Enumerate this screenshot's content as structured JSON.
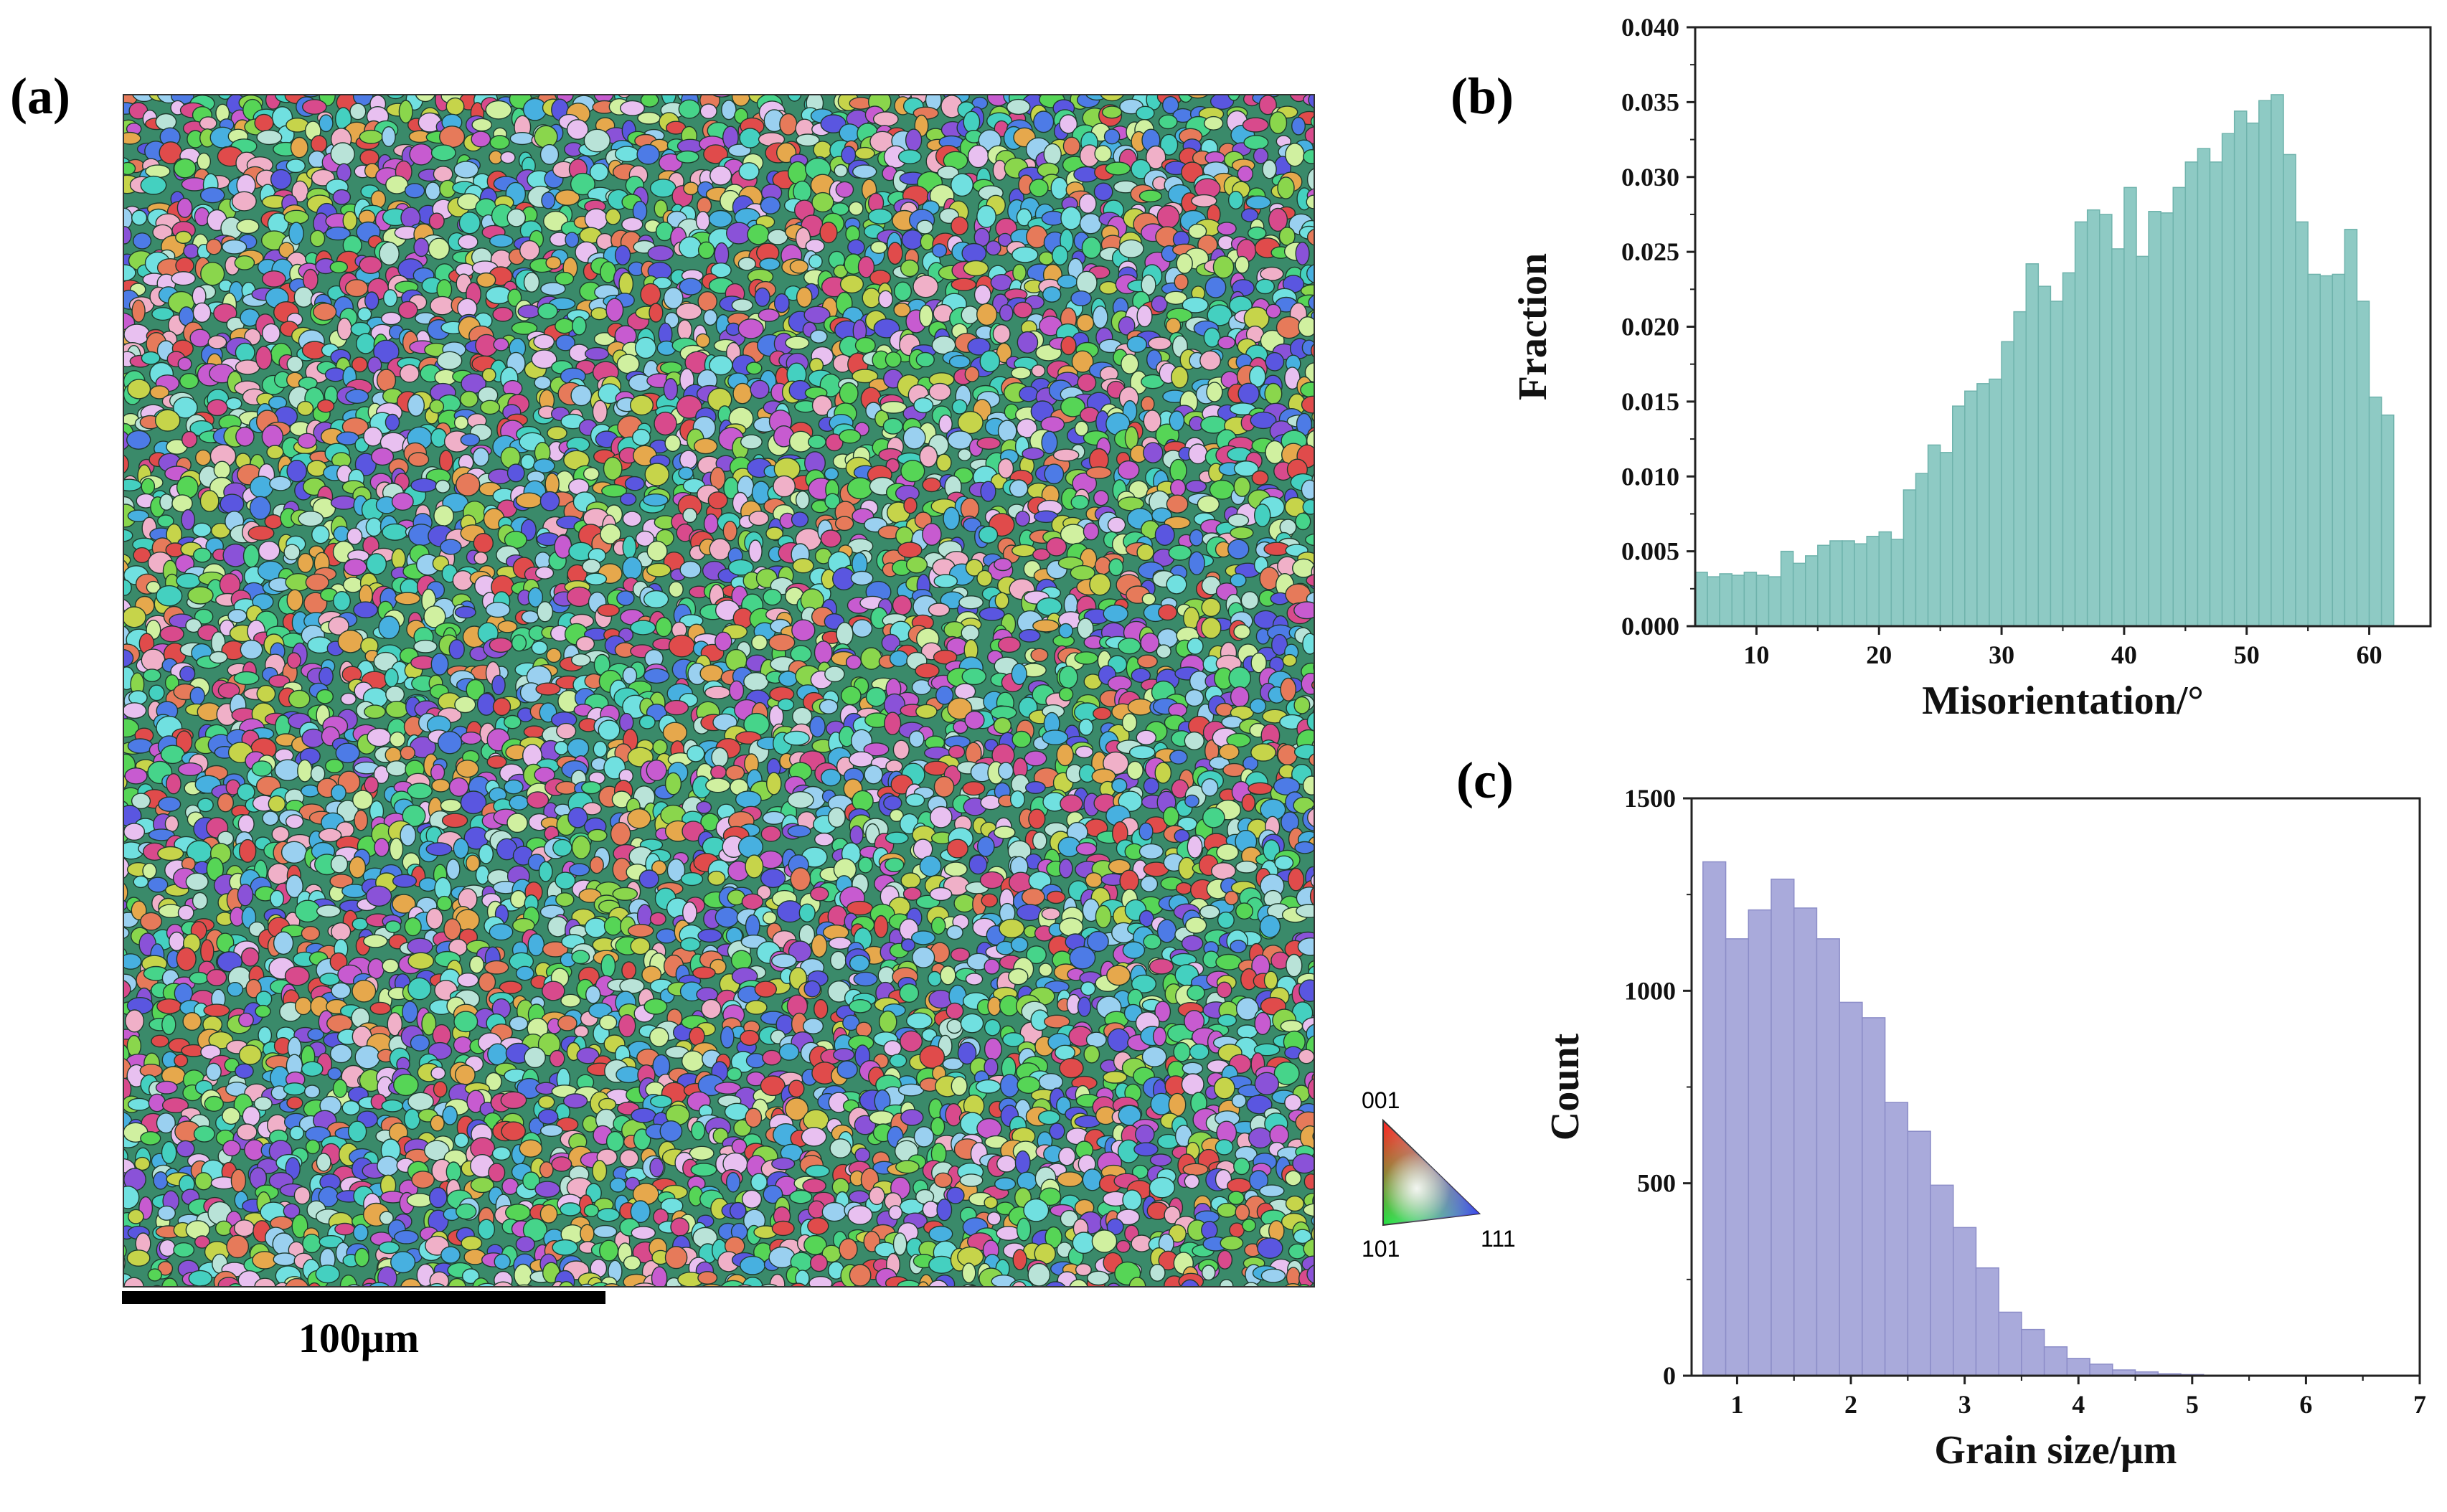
{
  "panels": {
    "a": "(a)",
    "b": "(b)",
    "c": "(c)"
  },
  "ebsd_map": {
    "scale_bar_label": "100μm",
    "ipf_key": {
      "top": "001",
      "left": "101",
      "right": "111"
    }
  },
  "colors": {
    "misorientation_bar": "#8ecac4",
    "misorientation_edge": "#6fb3ac",
    "grain_bar": "#a9aadb",
    "grain_edge": "#8c8dc8",
    "grain_palette": [
      "#e04b4b",
      "#d84a8c",
      "#c75bd0",
      "#8a52d8",
      "#5a56e0",
      "#4d7be6",
      "#47b0e0",
      "#44d0c0",
      "#46d48a",
      "#56d556",
      "#8ad64c",
      "#c6d44a",
      "#e6a84c",
      "#e67a5a",
      "#b9e3d8",
      "#f0b0c8",
      "#9ad0f0",
      "#d0f0a0",
      "#e8c0f0",
      "#70e0e0"
    ]
  },
  "chart_data": [
    {
      "id": "b",
      "type": "bar",
      "title": "",
      "xlabel": "Misorientation/°",
      "ylabel": "Fraction",
      "xlim": [
        5,
        65
      ],
      "ylim": [
        0,
        0.04
      ],
      "xticks": [
        10,
        20,
        30,
        40,
        50,
        60
      ],
      "yticks": [
        "0.000",
        "0.005",
        "0.010",
        "0.015",
        "0.020",
        "0.025",
        "0.030",
        "0.035",
        "0.040"
      ],
      "bin_start": 5,
      "bin_width": 1,
      "values": [
        0.0036,
        0.0033,
        0.0035,
        0.0034,
        0.0036,
        0.0034,
        0.0033,
        0.005,
        0.0042,
        0.0047,
        0.0054,
        0.0057,
        0.0057,
        0.0055,
        0.006,
        0.0063,
        0.0058,
        0.0091,
        0.0102,
        0.0121,
        0.0116,
        0.0147,
        0.0157,
        0.0162,
        0.0165,
        0.019,
        0.021,
        0.0242,
        0.0227,
        0.0217,
        0.0236,
        0.027,
        0.0278,
        0.0275,
        0.0252,
        0.0293,
        0.0247,
        0.0277,
        0.0276,
        0.0293,
        0.031,
        0.0319,
        0.031,
        0.0329,
        0.0344,
        0.0336,
        0.0351,
        0.0355,
        0.0315,
        0.027,
        0.0235,
        0.0234,
        0.0235,
        0.0265,
        0.0217,
        0.0153,
        0.0141
      ]
    },
    {
      "id": "c",
      "type": "bar",
      "title": "",
      "xlabel": "Grain size/μm",
      "ylabel": "Count",
      "xlim": [
        0.6,
        7.0
      ],
      "ylim": [
        0,
        1500
      ],
      "xticks": [
        1,
        2,
        3,
        4,
        5,
        6,
        7
      ],
      "yticks": [
        0,
        500,
        1000,
        1500
      ],
      "bin_start": 0.7,
      "bin_width": 0.2,
      "values": [
        1335,
        1135,
        1210,
        1290,
        1215,
        1135,
        970,
        930,
        710,
        635,
        495,
        385,
        280,
        165,
        120,
        75,
        45,
        30,
        15,
        10,
        5,
        3,
        1,
        1,
        0,
        0,
        0,
        0,
        0,
        0,
        0
      ]
    }
  ]
}
